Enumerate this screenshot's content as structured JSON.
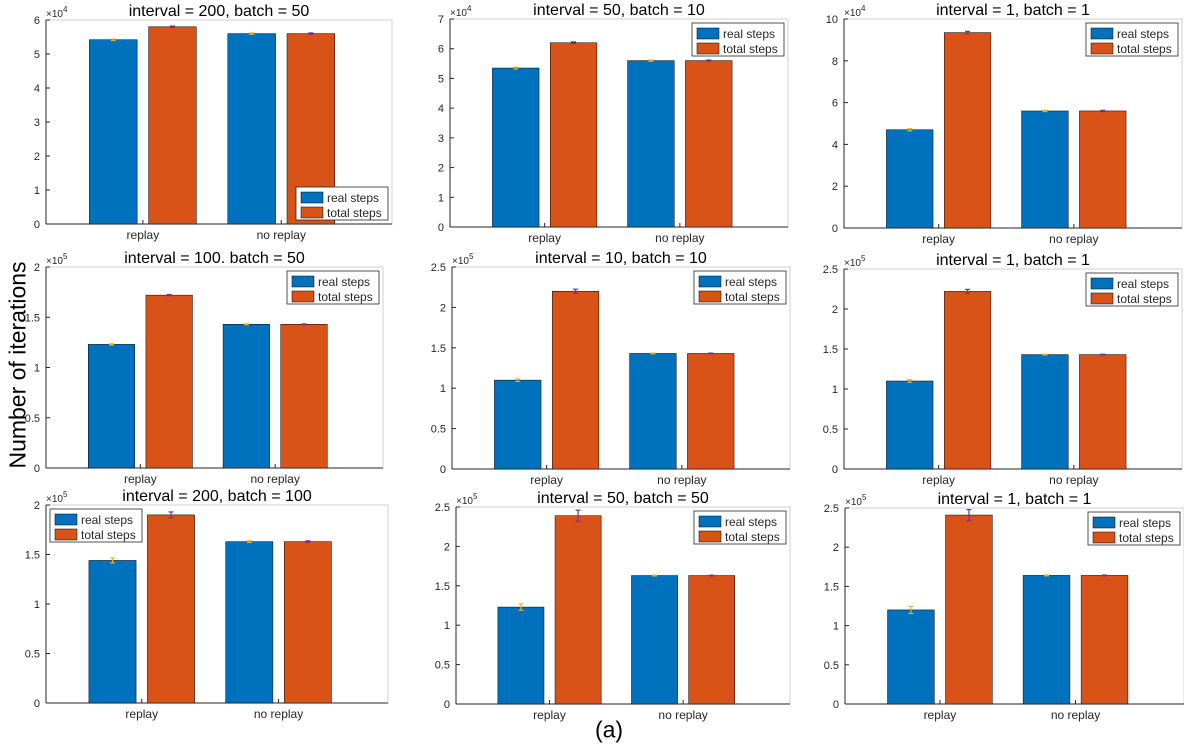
{
  "figure": {
    "ylabel": "Number of iterations",
    "caption": "(a)"
  },
  "colors": {
    "real": "#0072BD",
    "total": "#D95319",
    "err_real": "#EDB120",
    "err_total": "#7E2F8E",
    "axis": "#262626",
    "box": "#d0d0d0"
  },
  "chart_data": [
    {
      "type": "bar",
      "title": "interval = 200, batch = 50",
      "categories": [
        "replay",
        "no replay"
      ],
      "series": [
        {
          "name": "real steps",
          "values": [
            5.42,
            5.6
          ],
          "errors": [
            0.02,
            0.02
          ]
        },
        {
          "name": "total steps",
          "values": [
            5.8,
            5.6
          ],
          "errors": [
            0.02,
            0.02
          ]
        }
      ],
      "ylim": [
        0,
        6
      ],
      "yticks": [
        "0",
        "1",
        "2",
        "3",
        "4",
        "5",
        "6"
      ],
      "exponent": "×10^4",
      "legend": "bottom-right"
    },
    {
      "type": "bar",
      "title": "interval = 50, batch = 10",
      "categories": [
        "replay",
        "no replay"
      ],
      "series": [
        {
          "name": "real steps",
          "values": [
            5.35,
            5.6
          ],
          "errors": [
            0.03,
            0.02
          ]
        },
        {
          "name": "total steps",
          "values": [
            6.2,
            5.6
          ],
          "errors": [
            0.03,
            0.02
          ]
        }
      ],
      "ylim": [
        0,
        7
      ],
      "yticks": [
        "0",
        "1",
        "2",
        "3",
        "4",
        "5",
        "6",
        "7"
      ],
      "exponent": "×10^4",
      "legend": "top-right"
    },
    {
      "type": "bar",
      "title": "interval = 1, batch = 1",
      "categories": [
        "replay",
        "no replay"
      ],
      "series": [
        {
          "name": "real steps",
          "values": [
            4.7,
            5.6
          ],
          "errors": [
            0.05,
            0.03
          ]
        },
        {
          "name": "total steps",
          "values": [
            9.35,
            5.6
          ],
          "errors": [
            0.06,
            0.03
          ]
        }
      ],
      "ylim": [
        0,
        10
      ],
      "yticks": [
        "0",
        "2",
        "4",
        "6",
        "8",
        "10"
      ],
      "exponent": "×10^4",
      "legend": "top-right"
    },
    {
      "type": "bar",
      "title": "interval = 100. batch = 50",
      "categories": [
        "replay",
        "no replay"
      ],
      "series": [
        {
          "name": "real steps",
          "values": [
            1.23,
            1.43
          ],
          "errors": [
            0.006,
            0.004
          ]
        },
        {
          "name": "total steps",
          "values": [
            1.72,
            1.43
          ],
          "errors": [
            0.006,
            0.004
          ]
        }
      ],
      "ylim": [
        0,
        2
      ],
      "yticks": [
        "0",
        "0.5",
        "1",
        "1.5",
        "2"
      ],
      "exponent": "×10^5",
      "legend": "top-right"
    },
    {
      "type": "bar",
      "title": "interval = 10, batch = 10",
      "categories": [
        "replay",
        "no replay"
      ],
      "series": [
        {
          "name": "real steps",
          "values": [
            1.1,
            1.43
          ],
          "errors": [
            0.015,
            0.005
          ]
        },
        {
          "name": "total steps",
          "values": [
            2.2,
            1.43
          ],
          "errors": [
            0.025,
            0.005
          ]
        }
      ],
      "ylim": [
        0,
        2.5
      ],
      "yticks": [
        "0",
        "0.5",
        "1",
        "1.5",
        "2",
        "2.5"
      ],
      "exponent": "×10^5",
      "legend": "top-right"
    },
    {
      "type": "bar",
      "title": "interval = 1, batch = 1",
      "categories": [
        "replay",
        "no replay"
      ],
      "series": [
        {
          "name": "real steps",
          "values": [
            1.1,
            1.43
          ],
          "errors": [
            0.015,
            0.005
          ]
        },
        {
          "name": "total steps",
          "values": [
            2.22,
            1.43
          ],
          "errors": [
            0.025,
            0.005
          ]
        }
      ],
      "ylim": [
        0,
        2.5
      ],
      "yticks": [
        "0",
        "0.5",
        "1",
        "1.5",
        "2",
        "2.5"
      ],
      "exponent": "×10^5",
      "legend": "top-right"
    },
    {
      "type": "bar",
      "title": "interval = 200, batch = 100",
      "categories": [
        "replay",
        "no replay"
      ],
      "series": [
        {
          "name": "real steps",
          "values": [
            1.44,
            1.63
          ],
          "errors": [
            0.025,
            0.008
          ]
        },
        {
          "name": "total steps",
          "values": [
            1.9,
            1.63
          ],
          "errors": [
            0.03,
            0.008
          ]
        }
      ],
      "ylim": [
        0,
        2
      ],
      "yticks": [
        "0",
        "0.5",
        "1",
        "1.5",
        "2"
      ],
      "exponent": "×10^5",
      "legend": "top-left"
    },
    {
      "type": "bar",
      "title": "interval = 50, batch = 50",
      "categories": [
        "replay",
        "no replay"
      ],
      "series": [
        {
          "name": "real steps",
          "values": [
            1.23,
            1.63
          ],
          "errors": [
            0.04,
            0.005
          ]
        },
        {
          "name": "total steps",
          "values": [
            2.39,
            1.63
          ],
          "errors": [
            0.07,
            0.005
          ]
        }
      ],
      "ylim": [
        0,
        2.5
      ],
      "yticks": [
        "0",
        "0.5",
        "1",
        "1.5",
        "2",
        "2.5"
      ],
      "exponent": "×10^5",
      "legend": "top-right"
    },
    {
      "type": "bar",
      "title": "interval = 1, batch = 1",
      "categories": [
        "replay",
        "no replay"
      ],
      "series": [
        {
          "name": "real steps",
          "values": [
            1.2,
            1.64
          ],
          "errors": [
            0.045,
            0.005
          ]
        },
        {
          "name": "total steps",
          "values": [
            2.41,
            1.64
          ],
          "errors": [
            0.07,
            0.005
          ]
        }
      ],
      "ylim": [
        0,
        2.5
      ],
      "yticks": [
        "0",
        "0.5",
        "1",
        "1.5",
        "2",
        "2.5"
      ],
      "exponent": "×10^5",
      "legend": "top-right"
    }
  ]
}
